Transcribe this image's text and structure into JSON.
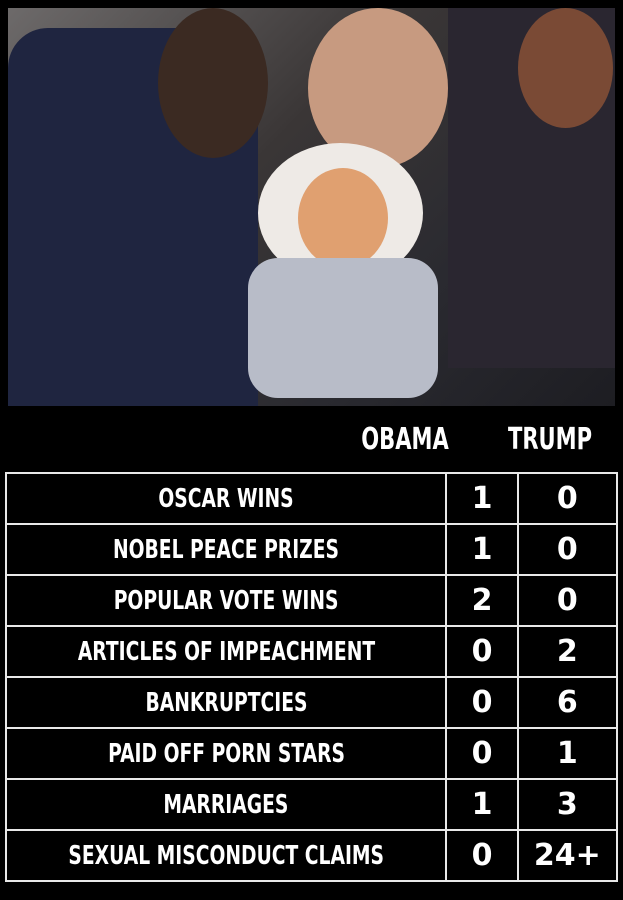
{
  "columns": {
    "obama": "OBAMA",
    "trump": "TRUMP"
  },
  "rows": [
    {
      "label": "OSCAR WINS",
      "obama": "1",
      "trump": "0"
    },
    {
      "label": "NOBEL PEACE PRIZES",
      "obama": "1",
      "trump": "0"
    },
    {
      "label": "POPULAR VOTE WINS",
      "obama": "2",
      "trump": "0"
    },
    {
      "label": "ARTICLES OF IMPEACHMENT",
      "obama": "0",
      "trump": "2"
    },
    {
      "label": "BANKRUPTCIES",
      "obama": "0",
      "trump": "6"
    },
    {
      "label": "PAID OFF PORN STARS",
      "obama": "0",
      "trump": "1"
    },
    {
      "label": "MARRIAGES",
      "obama": "1",
      "trump": "3"
    },
    {
      "label": "SEXUAL MISCONDUCT CLAIMS",
      "obama": "0",
      "trump": "24+"
    }
  ]
}
